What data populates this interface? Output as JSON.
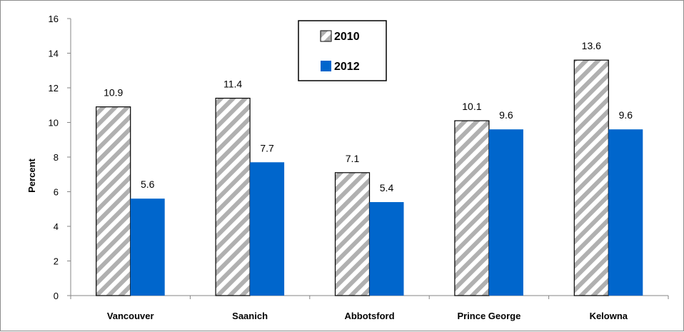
{
  "chart_data": {
    "type": "bar",
    "title": "",
    "xlabel": "",
    "ylabel": "Percent",
    "ylim": [
      0,
      16
    ],
    "yticks": [
      0,
      2,
      4,
      6,
      8,
      10,
      12,
      14,
      16
    ],
    "categories": [
      "Vancouver",
      "Saanich",
      "Abbotsford",
      "Prince George",
      "Kelowna"
    ],
    "series": [
      {
        "name": "2010",
        "values": [
          10.9,
          11.4,
          7.1,
          10.1,
          13.6
        ],
        "style": "diagonal-hatch",
        "color": "#b0b0b0"
      },
      {
        "name": "2012",
        "values": [
          5.6,
          7.7,
          5.4,
          9.6,
          9.6
        ],
        "style": "solid",
        "color": "#0066cc"
      }
    ],
    "data_labels": true,
    "grid": false,
    "legend": "top-center"
  }
}
